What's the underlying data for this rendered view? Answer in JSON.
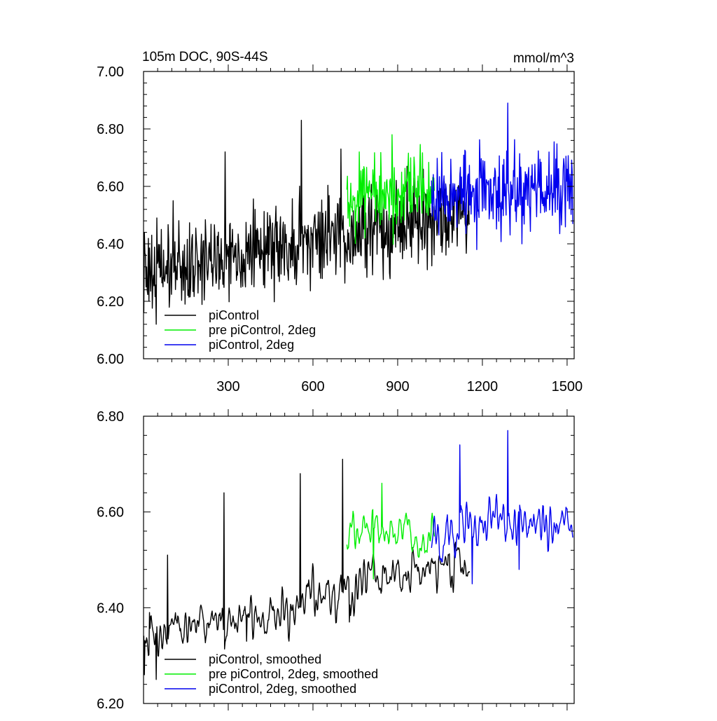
{
  "chart_data": [
    {
      "type": "line",
      "title": "105m DOC, 90S-44S",
      "units": "mmol/m^3",
      "xlim": [
        0,
        1525
      ],
      "ylim": [
        6.0,
        7.0
      ],
      "x_ticks": [
        300,
        600,
        900,
        1200,
        1500
      ],
      "x_tick_labels": [
        "300",
        "600",
        "900",
        "1200",
        "1500"
      ],
      "y_ticks": [
        6.0,
        6.2,
        6.4,
        6.6,
        6.8,
        7.0
      ],
      "y_tick_labels": [
        "6.00",
        "6.20",
        "6.40",
        "6.60",
        "6.80",
        "7.00"
      ],
      "legend_position": "lower-left",
      "series": [
        {
          "name": "piControl",
          "color": "#000000",
          "x_range": [
            1,
            1155
          ],
          "trend": [
            6.3,
            6.52
          ],
          "noise": 0.075,
          "anchors": [
            [
              1,
              6.16
            ],
            [
              3,
              6.44
            ],
            [
              10,
              6.25
            ],
            [
              30,
              6.43
            ],
            [
              45,
              6.12
            ],
            [
              105,
              6.55
            ],
            [
              157,
              6.22
            ],
            [
              290,
              6.72
            ],
            [
              362,
              6.25
            ],
            [
              560,
              6.83
            ],
            [
              628,
              6.28
            ],
            [
              700,
              6.73
            ]
          ]
        },
        {
          "name": "pre piControl, 2deg",
          "color": "#00ee00",
          "x_range": [
            720,
            1030
          ],
          "trend": [
            6.55,
            6.56
          ],
          "noise": 0.07,
          "anchors": [
            [
              765,
              6.72
            ],
            [
              785,
              6.42
            ],
            [
              880,
              6.78
            ]
          ]
        },
        {
          "name": "piControl, 2deg",
          "color": "#0000ee",
          "x_range": [
            1020,
            1520
          ],
          "trend": [
            6.57,
            6.6
          ],
          "noise": 0.07,
          "anchors": [
            [
              1180,
              6.38
            ],
            [
              1290,
              6.89
            ],
            [
              1340,
              6.4
            ]
          ]
        }
      ]
    },
    {
      "type": "line",
      "xlim": [
        0,
        1525
      ],
      "ylim": [
        6.2,
        6.8
      ],
      "x_ticks": [
        300,
        600,
        900,
        1200,
        1500
      ],
      "y_ticks": [
        6.2,
        6.4,
        6.6,
        6.8
      ],
      "y_tick_labels": [
        "6.20",
        "6.40",
        "6.60",
        "6.80"
      ],
      "legend_position": "lower-left",
      "series": [
        {
          "name": "piControl, smoothed",
          "color": "#000000",
          "x_range": [
            1,
            1155
          ],
          "trend": [
            6.33,
            6.5
          ],
          "noise": 0.05,
          "anchors": [
            [
              3,
              6.26
            ],
            [
              22,
              6.39
            ],
            [
              45,
              6.25
            ],
            [
              85,
              6.51
            ],
            [
              285,
              6.64
            ],
            [
              365,
              6.33
            ],
            [
              555,
              6.68
            ],
            [
              705,
              6.71
            ],
            [
              730,
              6.37
            ]
          ]
        },
        {
          "name": "pre piControl, 2deg, smoothed",
          "color": "#00ee00",
          "x_range": [
            720,
            1030
          ],
          "trend": [
            6.55,
            6.55
          ],
          "noise": 0.045,
          "anchors": [
            [
              815,
              6.46
            ],
            [
              845,
              6.66
            ]
          ]
        },
        {
          "name": "piControl, 2deg, smoothed",
          "color": "#0000ee",
          "x_range": [
            1020,
            1520
          ],
          "trend": [
            6.56,
            6.58
          ],
          "noise": 0.05,
          "anchors": [
            [
              1120,
              6.74
            ],
            [
              1165,
              6.45
            ],
            [
              1290,
              6.77
            ],
            [
              1330,
              6.48
            ]
          ]
        }
      ]
    }
  ]
}
